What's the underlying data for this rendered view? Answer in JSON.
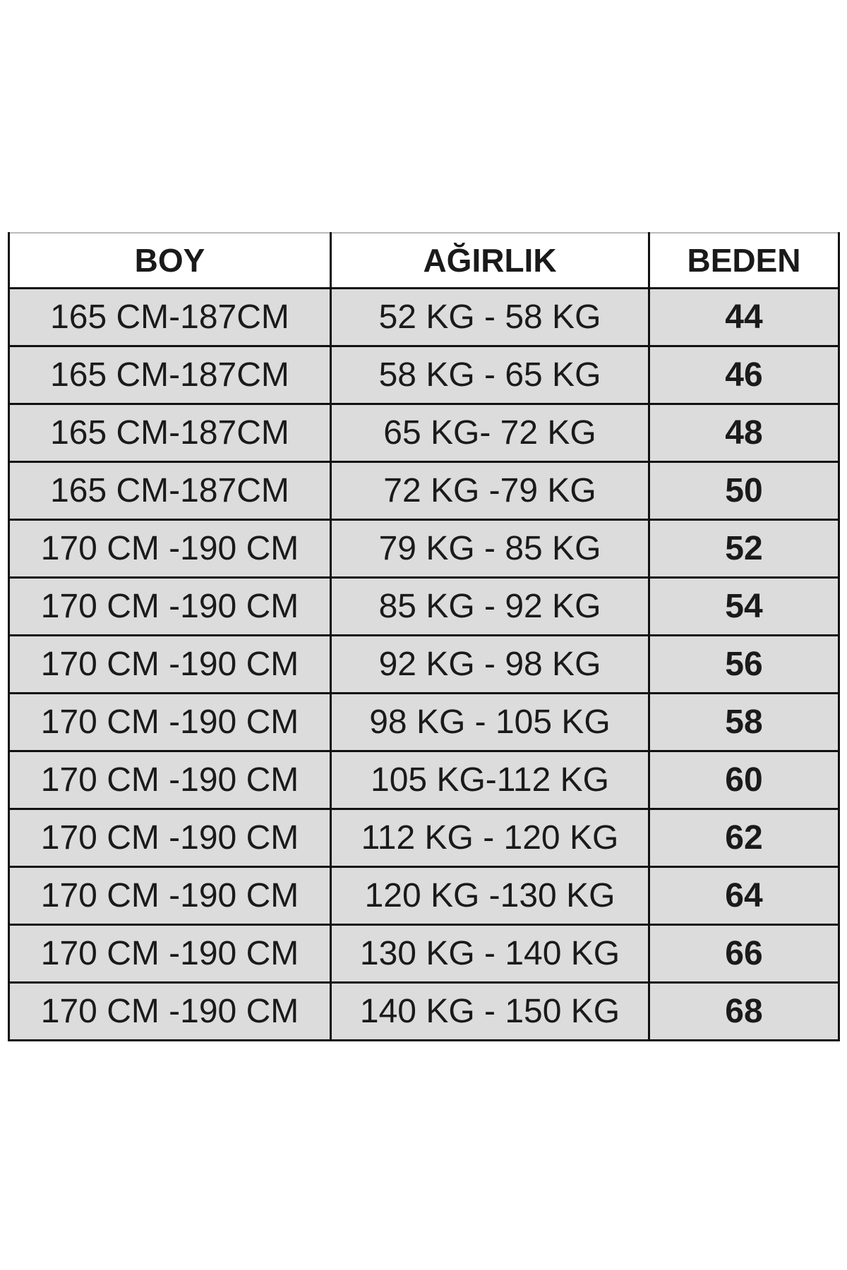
{
  "headers": [
    "BOY",
    "AĞIRLIK",
    "BEDEN"
  ],
  "rows": [
    [
      "165 CM-187CM",
      "52 KG - 58 KG",
      "44"
    ],
    [
      "165 CM-187CM",
      "58 KG - 65 KG",
      "46"
    ],
    [
      "165 CM-187CM",
      "65 KG- 72 KG",
      "48"
    ],
    [
      "165 CM-187CM",
      "72 KG -79 KG",
      "50"
    ],
    [
      "170 CM -190 CM",
      "79 KG - 85 KG",
      "52"
    ],
    [
      "170 CM -190 CM",
      "85 KG - 92 KG",
      "54"
    ],
    [
      "170 CM -190 CM",
      "92 KG - 98 KG",
      "56"
    ],
    [
      "170 CM -190 CM",
      "98 KG - 105 KG",
      "58"
    ],
    [
      "170 CM -190 CM",
      "105 KG-112 KG",
      "60"
    ],
    [
      "170 CM -190 CM",
      "112 KG - 120 KG",
      "62"
    ],
    [
      "170 CM -190 CM",
      "120 KG -130 KG",
      "64"
    ],
    [
      "170 CM -190 CM",
      "130 KG - 140 KG",
      "66"
    ],
    [
      "170 CM -190 CM",
      "140 KG - 150 KG",
      "68"
    ]
  ],
  "colors": {
    "header_bg": "#ffffff",
    "row_bg": "#dcdcdc",
    "border": "#111111"
  }
}
